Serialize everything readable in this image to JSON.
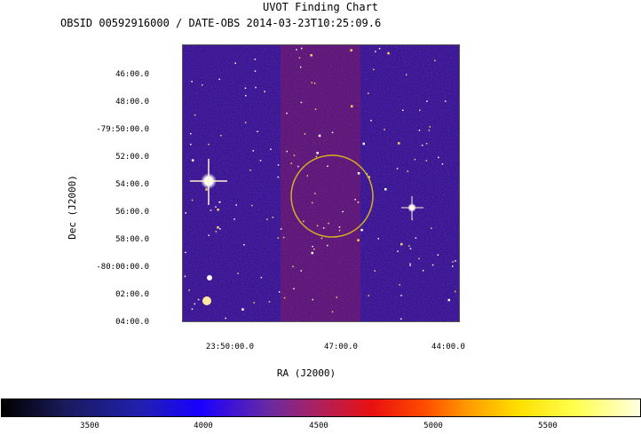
{
  "window": {
    "title": "UVOT Finding Chart",
    "subtitle": "OBSID 00592916000 / DATE-OBS 2014-03-23T10:25:09.6"
  },
  "axes": {
    "dec_title": "Dec (J2000)",
    "ra_title": "RA (J2000)",
    "dec_ticks": [
      "46:00.0",
      "48:00.0",
      "-79:50:00.0",
      "52:00.0",
      "54:00.0",
      "56:00.0",
      "58:00.0",
      "-80:00:00.0",
      "02:00.0",
      "04:00.0"
    ],
    "ra_ticks": [
      "23:50:00.0",
      "47:00.0",
      "44:00.0"
    ]
  },
  "colorbar": {
    "ticks": [
      "3500",
      "4000",
      "4500",
      "5000",
      "5500"
    ],
    "colors": [
      "#000000",
      "#2020b0",
      "#b0205a",
      "#ff4a00",
      "#ffe000",
      "#ffffe0"
    ]
  },
  "marker": {
    "shape": "circle",
    "color": "#d4b020"
  }
}
